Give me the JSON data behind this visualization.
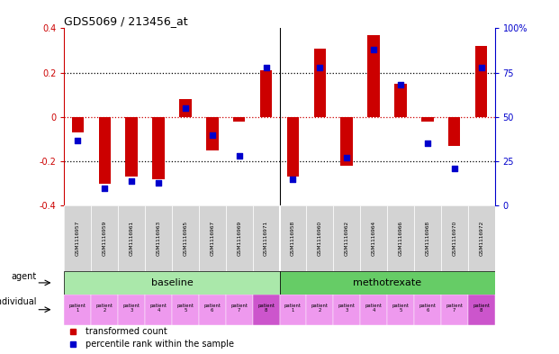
{
  "title": "GDS5069 / 213456_at",
  "samples": [
    "GSM1116957",
    "GSM1116959",
    "GSM1116961",
    "GSM1116963",
    "GSM1116965",
    "GSM1116967",
    "GSM1116969",
    "GSM1116971",
    "GSM1116958",
    "GSM1116960",
    "GSM1116962",
    "GSM1116964",
    "GSM1116966",
    "GSM1116968",
    "GSM1116970",
    "GSM1116972"
  ],
  "bar_values": [
    -0.07,
    -0.3,
    -0.27,
    -0.28,
    0.08,
    -0.15,
    -0.02,
    0.21,
    -0.27,
    0.31,
    -0.22,
    0.37,
    0.15,
    -0.02,
    -0.13,
    0.32
  ],
  "dot_values": [
    37,
    10,
    14,
    13,
    55,
    40,
    28,
    78,
    15,
    78,
    27,
    88,
    68,
    35,
    21,
    78
  ],
  "ylim": [
    -0.4,
    0.4
  ],
  "right_ylim": [
    0,
    100
  ],
  "left_yticks": [
    -0.4,
    -0.2,
    0.0,
    0.2,
    0.4
  ],
  "left_yticklabels": [
    "-0.4",
    "-0.2",
    "0",
    "0.2",
    "0.4"
  ],
  "right_yticks": [
    0,
    25,
    50,
    75,
    100
  ],
  "right_yticklabels": [
    "0",
    "25",
    "50",
    "75",
    "100%"
  ],
  "hlines_black": [
    -0.2,
    0.2
  ],
  "hline_red": 0.0,
  "bar_color": "#cc0000",
  "dot_color": "#0000cc",
  "background_color": "#ffffff",
  "sample_area_color": "#d3d3d3",
  "baseline_color": "#aae8aa",
  "methotrexate_color": "#66cc66",
  "indiv_light_color": "#ee99ee",
  "indiv_dark_color": "#cc55cc",
  "legend_items": [
    "transformed count",
    "percentile rank within the sample"
  ],
  "agent_label": "agent",
  "individual_label": "individual"
}
